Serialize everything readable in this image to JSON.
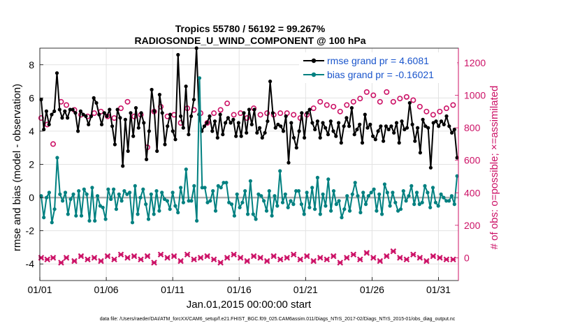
{
  "chart_data": {
    "type": "line",
    "title": "Tropics 55780 / 56192 = 99.267%",
    "subtitle": "RADIOSONDE_U_WIND_COMPONENT @ 100 hPa",
    "xlabel": "Jan.01,2015 00:00:00 start",
    "ylabel": "rmse and bias (model - observation)",
    "ylabel_right": "# of obs: o=possible; ×=assimilated",
    "x_ticks": [
      "01/01",
      "01/06",
      "01/11",
      "01/16",
      "01/21",
      "01/26",
      "01/31"
    ],
    "x_range": [
      0,
      31.5
    ],
    "y_range": [
      -5,
      9
    ],
    "y_ticks": [
      -4,
      -2,
      0,
      2,
      4,
      6,
      8
    ],
    "y2_range": [
      -140,
      1290
    ],
    "y2_ticks": [
      0,
      200,
      400,
      600,
      800,
      1000,
      1200
    ],
    "legend": {
      "position": "top-right",
      "entries": [
        "rmse grand pr = 4.6081",
        "bias grand pr = -0.16021"
      ]
    },
    "footer": "data file: /Users/raeder/DAI/ATM_forcXX/CAM6_setup/f.e21.FHIST_BGC.f09_025.CAM6assim.011/Diags_NTrS_2017-02/Diags_NTrS_2015-01/obs_diag_output.nc",
    "colors": {
      "rmse": "#000000",
      "bias": "#008080",
      "obs": "#cc1166",
      "zero_line": "#b0b0b0"
    },
    "series": [
      {
        "name": "rmse",
        "values": [
          5.9,
          4.1,
          5.2,
          4.4,
          5.0,
          5.2,
          7.5,
          5.3,
          4.8,
          5.2,
          4.8,
          5.3,
          5.3,
          5.1,
          4.0,
          5.2,
          5.0,
          4.9,
          4.4,
          4.9,
          6.0,
          5.7,
          5.0,
          4.4,
          5.1,
          4.9,
          5.3,
          4.3,
          3.2,
          5.3,
          4.8,
          1.9,
          4.7,
          2.8,
          5.1,
          3.7,
          5.4,
          4.2,
          5.1,
          4.5,
          2.3,
          4.0,
          6.5,
          5.2,
          2.8,
          6.2,
          5.1,
          3.2,
          4.3,
          5.0,
          4.0,
          3.5,
          8.6,
          4.9,
          4.2,
          6.7,
          3.8,
          4.9,
          5.9,
          9.0,
          5.0,
          4.0,
          4.3,
          4.5,
          4.9,
          4.0,
          4.6,
          3.6,
          5.0,
          3.8,
          4.5,
          4.8,
          4.5,
          4.7,
          3.7,
          4.5,
          3.7,
          5.1,
          3.9,
          5.3,
          4.4,
          5.3,
          3.9,
          4.2,
          3.6,
          3.9,
          4.6,
          7.0,
          5.1,
          4.2,
          4.4,
          4.3,
          4.0,
          4.9,
          2.1,
          4.5,
          3.6,
          3.0,
          4.0,
          5.1,
          3.6,
          5.1,
          5.3,
          4.5,
          4.1,
          4.6,
          3.6,
          4.5,
          4.2,
          3.8,
          4.6,
          4.0,
          3.7,
          4.5,
          3.3,
          4.3,
          4.8,
          4.3,
          5.4,
          3.8,
          4.1,
          4.4,
          3.3,
          5.0,
          4.2,
          4.4,
          3.7,
          3.5,
          4.0,
          4.3,
          3.4,
          4.3,
          4.1,
          4.3,
          3.9,
          4.5,
          3.3,
          4.6,
          4.1,
          4.2,
          5.7,
          4.4,
          3.4,
          4.2,
          2.7,
          4.7,
          4.3,
          4.2,
          1.8,
          4.5,
          4.6,
          4.3,
          4.6,
          4.4,
          4.9,
          4.3,
          3.9,
          4.1,
          2.4
        ]
      },
      {
        "name": "bias",
        "values": [
          0.1,
          -1.2,
          0.0,
          0.3,
          -1.5,
          -0.7,
          2.4,
          0.2,
          -0.2,
          0.3,
          -1.0,
          -0.1,
          0.2,
          -1.1,
          0.4,
          -1.1,
          0.5,
          0.2,
          -1.4,
          0.6,
          -1.4,
          0.1,
          -0.5,
          -0.6,
          -1.3,
          0.5,
          -0.1,
          0.5,
          -0.7,
          0.2,
          -0.2,
          0.4,
          0.2,
          0.3,
          -1.5,
          0.7,
          -1.0,
          0.0,
          0.5,
          -0.4,
          -1.3,
          0.2,
          -1.0,
          0.4,
          -0.8,
          0.3,
          -0.1,
          -0.2,
          -0.7,
          0.3,
          -0.5,
          -0.9,
          0.6,
          -0.3,
          1.7,
          -0.2,
          -0.2,
          0.7,
          -1.4,
          7.2,
          0.6,
          0.6,
          -0.3,
          -0.2,
          0.4,
          -0.8,
          0.7,
          0.6,
          0.9,
          0.9,
          -0.3,
          -0.4,
          -1.1,
          0.2,
          -0.6,
          -0.3,
          0.4,
          -1.0,
          1.0,
          -1.0,
          -1.3,
          0.2,
          0.1,
          -0.2,
          -0.8,
          0.4,
          -1.1,
          0.1,
          -0.5,
          1.6,
          -0.3,
          0.2,
          -0.6,
          -0.2,
          -0.4,
          0.4,
          0.4,
          -0.4,
          -1.0,
          0.3,
          -0.6,
          0.6,
          -0.7,
          1.2,
          -1.0,
          0.2,
          -0.5,
          1.1,
          -0.8,
          0.4,
          -0.4,
          -0.2,
          -1.2,
          -0.7,
          0.1,
          -0.8,
          0.2,
          0.9,
          0.1,
          -0.9,
          0.3,
          -0.4,
          0.1,
          0.3,
          0.5,
          -0.8,
          0.2,
          -1.0,
          0.8,
          0.3,
          -0.5,
          0.3,
          -0.3,
          -0.8,
          -0.7,
          0.4,
          -0.2,
          0.1,
          0.7,
          -0.4,
          0.3,
          -0.4,
          -0.3,
          0.7,
          0.3,
          -0.6,
          0.6,
          -0.3,
          -0.5,
          0.2,
          0.0,
          -0.2,
          -0.2,
          0.1,
          -0.4,
          1.3
        ]
      }
    ],
    "obs_possible": [
      [
        0.1,
        860
      ],
      [
        0.56,
        820
      ],
      [
        1.0,
        700
      ],
      [
        1.6,
        960
      ],
      [
        2.0,
        940
      ],
      [
        2.6,
        910
      ],
      [
        3.1,
        880
      ],
      [
        3.6,
        870
      ],
      [
        4.1,
        890
      ],
      [
        4.6,
        900
      ],
      [
        5.1,
        870
      ],
      [
        5.6,
        860
      ],
      [
        6.1,
        920
      ],
      [
        6.6,
        960
      ],
      [
        7.1,
        870
      ],
      [
        7.6,
        880
      ],
      [
        8.1,
        680
      ],
      [
        8.6,
        900
      ],
      [
        9.1,
        930
      ],
      [
        9.6,
        870
      ],
      [
        10.1,
        880
      ],
      [
        10.6,
        830
      ],
      [
        11.1,
        920
      ],
      [
        11.6,
        910
      ],
      [
        12.1,
        890
      ],
      [
        12.6,
        830
      ],
      [
        13.1,
        890
      ],
      [
        13.6,
        910
      ],
      [
        14.1,
        950
      ],
      [
        14.6,
        880
      ],
      [
        15.1,
        890
      ],
      [
        15.6,
        860
      ],
      [
        16.1,
        920
      ],
      [
        16.6,
        880
      ],
      [
        17.1,
        890
      ],
      [
        17.6,
        880
      ],
      [
        18.1,
        890
      ],
      [
        18.6,
        890
      ],
      [
        19.1,
        880
      ],
      [
        19.6,
        860
      ],
      [
        20.1,
        880
      ],
      [
        20.6,
        920
      ],
      [
        21.1,
        960
      ],
      [
        21.6,
        940
      ],
      [
        22.1,
        930
      ],
      [
        22.6,
        900
      ],
      [
        23.1,
        940
      ],
      [
        23.6,
        960
      ],
      [
        24.1,
        980
      ],
      [
        24.6,
        1020
      ],
      [
        25.1,
        1000
      ],
      [
        25.6,
        960
      ],
      [
        26.1,
        1020
      ],
      [
        26.6,
        960
      ],
      [
        27.1,
        980
      ],
      [
        27.6,
        990
      ],
      [
        28.1,
        970
      ],
      [
        28.6,
        930
      ],
      [
        29.1,
        900
      ],
      [
        29.6,
        880
      ],
      [
        30.1,
        900
      ],
      [
        30.6,
        920
      ],
      [
        31.1,
        940
      ]
    ],
    "obs_assimilated": [
      [
        0.1,
        0
      ],
      [
        0.56,
        -10
      ],
      [
        1.0,
        0
      ],
      [
        1.6,
        -30
      ],
      [
        2.0,
        0
      ],
      [
        2.6,
        -20
      ],
      [
        3.1,
        10
      ],
      [
        3.6,
        -10
      ],
      [
        4.1,
        0
      ],
      [
        4.6,
        -20
      ],
      [
        5.1,
        10
      ],
      [
        5.6,
        -10
      ],
      [
        6.1,
        20
      ],
      [
        6.6,
        0
      ],
      [
        7.1,
        10
      ],
      [
        7.6,
        -10
      ],
      [
        8.1,
        10
      ],
      [
        8.6,
        -30
      ],
      [
        9.1,
        20
      ],
      [
        9.6,
        0
      ],
      [
        10.1,
        10
      ],
      [
        10.6,
        -20
      ],
      [
        11.1,
        20
      ],
      [
        11.6,
        -10
      ],
      [
        12.1,
        0
      ],
      [
        12.6,
        10
      ],
      [
        13.1,
        -10
      ],
      [
        13.6,
        -30
      ],
      [
        14.1,
        0
      ],
      [
        14.6,
        20
      ],
      [
        15.1,
        0
      ],
      [
        15.6,
        -20
      ],
      [
        16.1,
        10
      ],
      [
        16.6,
        0
      ],
      [
        17.1,
        -20
      ],
      [
        17.6,
        10
      ],
      [
        18.1,
        -10
      ],
      [
        18.6,
        0
      ],
      [
        19.1,
        20
      ],
      [
        19.6,
        -10
      ],
      [
        20.1,
        10
      ],
      [
        20.6,
        -20
      ],
      [
        21.1,
        0
      ],
      [
        21.6,
        -10
      ],
      [
        22.1,
        10
      ],
      [
        22.6,
        -30
      ],
      [
        23.1,
        0
      ],
      [
        23.6,
        20
      ],
      [
        24.1,
        -10
      ],
      [
        24.6,
        30
      ],
      [
        25.1,
        0
      ],
      [
        25.6,
        -20
      ],
      [
        26.1,
        10
      ],
      [
        26.6,
        40
      ],
      [
        27.1,
        0
      ],
      [
        27.6,
        -10
      ],
      [
        28.1,
        20
      ],
      [
        28.6,
        0
      ],
      [
        29.1,
        -20
      ],
      [
        29.6,
        10
      ],
      [
        30.1,
        0
      ],
      [
        30.6,
        -10
      ],
      [
        31.1,
        -10
      ]
    ]
  }
}
